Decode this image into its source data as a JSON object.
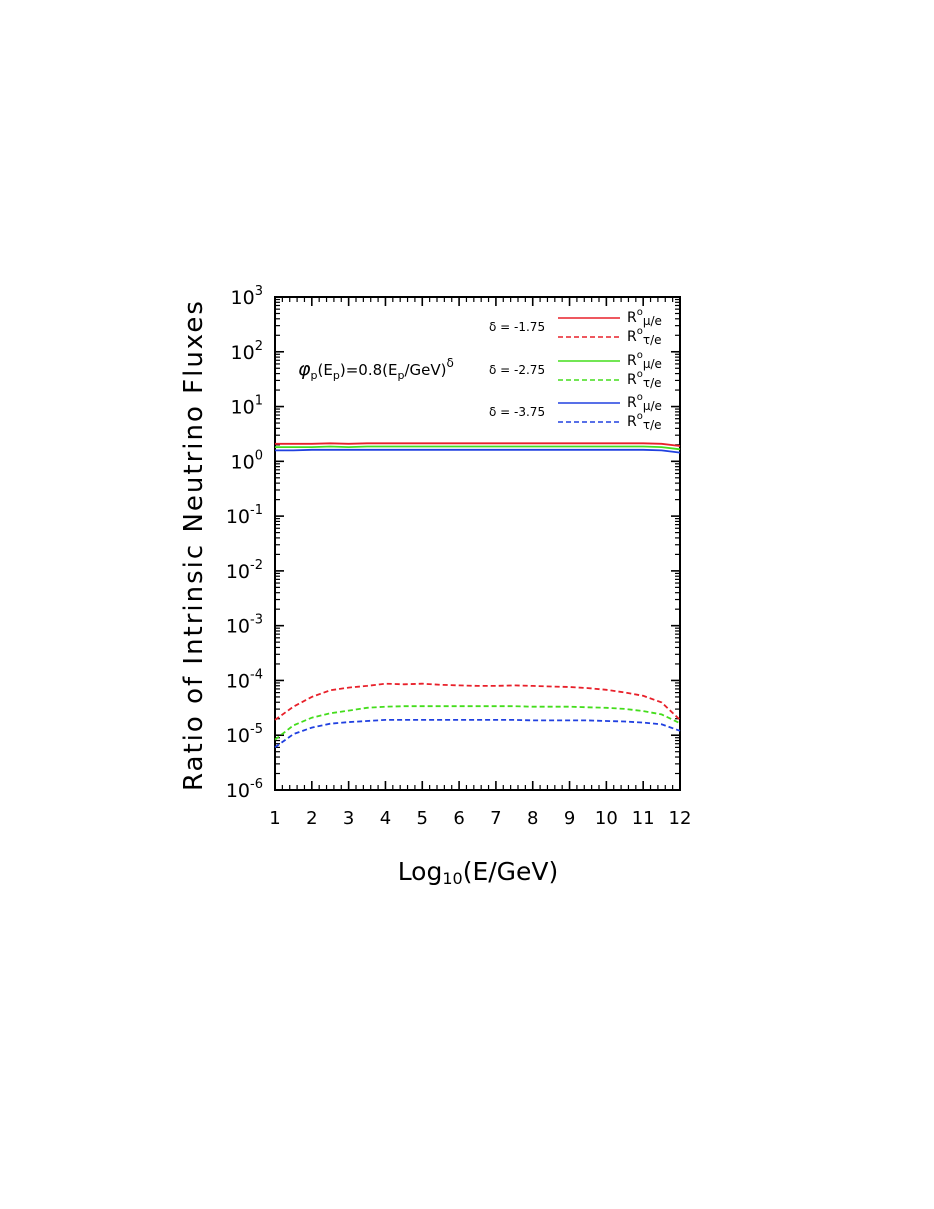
{
  "chart_data": {
    "type": "line",
    "ylabel": "Ratio of Intrinsic Neutrino Fluxes",
    "xlabel": {
      "main": "Log",
      "sub": "10",
      "rest": "(E/GeV)"
    },
    "annotation": {
      "phi": "φ",
      "p1": "p",
      "e1": "(E",
      "p2": "p",
      "mid": ")=0.8(E",
      "p3": "p",
      "end": "/GeV)",
      "delta": "δ"
    },
    "x_ticks": [
      "1",
      "2",
      "3",
      "4",
      "5",
      "6",
      "7",
      "8",
      "9",
      "10",
      "11",
      "12"
    ],
    "y_ticks": [
      {
        "base": "10",
        "exp": "-6"
      },
      {
        "base": "10",
        "exp": "-5"
      },
      {
        "base": "10",
        "exp": "-4"
      },
      {
        "base": "10",
        "exp": "-3"
      },
      {
        "base": "10",
        "exp": "-2"
      },
      {
        "base": "10",
        "exp": "-1"
      },
      {
        "base": "10",
        "exp": "0"
      },
      {
        "base": "10",
        "exp": "1"
      },
      {
        "base": "10",
        "exp": "2"
      },
      {
        "base": "10",
        "exp": "3"
      }
    ],
    "xlim": [
      1,
      12
    ],
    "ylim_log10": [
      -6,
      3
    ],
    "legend": {
      "placement": "top-right",
      "groups": [
        {
          "delta_label": "δ = -1.75",
          "solid_label": {
            "base": "R",
            "sup": "o",
            "sub": "μ/e"
          },
          "dashed_label": {
            "base": "R",
            "sup": "o",
            "sub": "τ/e"
          },
          "color": "#e8202a"
        },
        {
          "delta_label": "δ = -2.75",
          "solid_label": {
            "base": "R",
            "sup": "o",
            "sub": "μ/e"
          },
          "dashed_label": {
            "base": "R",
            "sup": "o",
            "sub": "τ/e"
          },
          "color": "#44dd1c"
        },
        {
          "delta_label": "δ = -3.75",
          "solid_label": {
            "base": "R",
            "sup": "o",
            "sub": "μ/e"
          },
          "dashed_label": {
            "base": "R",
            "sup": "o",
            "sub": "τ/e"
          },
          "color": "#2040e0"
        }
      ]
    },
    "x": [
      1,
      1.5,
      2,
      2.5,
      3,
      3.5,
      4,
      4.5,
      5,
      5.5,
      6,
      6.5,
      7,
      7.5,
      8,
      8.5,
      9,
      9.5,
      10,
      10.5,
      11,
      11.5,
      12
    ],
    "series": [
      {
        "style": "solid",
        "color": "#e8202a",
        "log10_values": [
          0.32,
          0.32,
          0.32,
          0.33,
          0.32,
          0.33,
          0.33,
          0.33,
          0.33,
          0.33,
          0.33,
          0.33,
          0.33,
          0.33,
          0.33,
          0.33,
          0.33,
          0.33,
          0.33,
          0.33,
          0.33,
          0.32,
          0.28
        ]
      },
      {
        "style": "solid",
        "color": "#44dd1c",
        "log10_values": [
          0.26,
          0.26,
          0.26,
          0.27,
          0.26,
          0.27,
          0.27,
          0.27,
          0.27,
          0.27,
          0.27,
          0.27,
          0.27,
          0.27,
          0.27,
          0.27,
          0.27,
          0.27,
          0.27,
          0.27,
          0.27,
          0.26,
          0.22
        ]
      },
      {
        "style": "solid",
        "color": "#2040e0",
        "log10_values": [
          0.2,
          0.2,
          0.21,
          0.21,
          0.21,
          0.21,
          0.21,
          0.21,
          0.21,
          0.21,
          0.21,
          0.21,
          0.21,
          0.21,
          0.21,
          0.21,
          0.21,
          0.21,
          0.21,
          0.21,
          0.21,
          0.2,
          0.16
        ]
      },
      {
        "style": "dashed",
        "color": "#e8202a",
        "log10_values": [
          -4.72,
          -4.48,
          -4.3,
          -4.18,
          -4.13,
          -4.1,
          -4.06,
          -4.07,
          -4.06,
          -4.08,
          -4.09,
          -4.1,
          -4.1,
          -4.09,
          -4.1,
          -4.11,
          -4.12,
          -4.14,
          -4.17,
          -4.22,
          -4.28,
          -4.4,
          -4.72
        ]
      },
      {
        "style": "dashed",
        "color": "#44dd1c",
        "log10_values": [
          -5.08,
          -4.82,
          -4.68,
          -4.6,
          -4.55,
          -4.5,
          -4.48,
          -4.47,
          -4.47,
          -4.47,
          -4.47,
          -4.47,
          -4.47,
          -4.47,
          -4.48,
          -4.48,
          -4.48,
          -4.49,
          -4.5,
          -4.52,
          -4.56,
          -4.62,
          -4.78
        ]
      },
      {
        "style": "dashed",
        "color": "#2040e0",
        "log10_values": [
          -5.22,
          -4.98,
          -4.86,
          -4.79,
          -4.76,
          -4.74,
          -4.72,
          -4.72,
          -4.72,
          -4.72,
          -4.72,
          -4.72,
          -4.72,
          -4.72,
          -4.73,
          -4.73,
          -4.73,
          -4.73,
          -4.74,
          -4.75,
          -4.77,
          -4.8,
          -4.92
        ]
      }
    ]
  }
}
